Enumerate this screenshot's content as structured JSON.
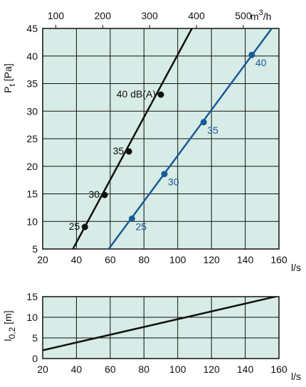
{
  "chart_data": [
    {
      "type": "line",
      "id": "pressure",
      "xlabel": "l/s",
      "ylabel_main": "P",
      "ylabel_sub": "t",
      "ylabel_unit": "[Pa]",
      "x_ticks": [
        20,
        40,
        60,
        80,
        100,
        120,
        140,
        160
      ],
      "xlim": [
        20,
        160
      ],
      "y_ticks": [
        5,
        10,
        15,
        20,
        25,
        30,
        35,
        40,
        45
      ],
      "ylim": [
        5,
        45
      ],
      "grid": true,
      "top_axis": {
        "label_base": "m",
        "label_sup": "3",
        "label_tail": "/h",
        "ticks": [
          100,
          200,
          300,
          400,
          500
        ],
        "ls_per_unit": 0.277778
      },
      "series": [
        {
          "color": "#111111",
          "x": [
            37.9,
            108.4
          ],
          "y": [
            5,
            45
          ],
          "points": [
            {
              "x": 45.0,
              "y": 9.0,
              "label": "25"
            },
            {
              "x": 56.7,
              "y": 14.8,
              "label": "30"
            },
            {
              "x": 71.1,
              "y": 22.7,
              "label": "35"
            },
            {
              "x": 90.0,
              "y": 33.0,
              "label": "40 dB(A)"
            }
          ]
        },
        {
          "color": "#1a5a96",
          "x": [
            59.1,
            155.7
          ],
          "y": [
            5,
            45
          ],
          "points": [
            {
              "x": 72.9,
              "y": 10.5,
              "label": "25"
            },
            {
              "x": 92.1,
              "y": 18.6,
              "label": "30"
            },
            {
              "x": 115.4,
              "y": 28.0,
              "label": "35"
            },
            {
              "x": 143.9,
              "y": 40.2,
              "label": "40"
            }
          ]
        }
      ]
    },
    {
      "type": "line",
      "id": "throw",
      "xlabel": "l/s",
      "ylabel_main": "l",
      "ylabel_sub": "0,2",
      "ylabel_unit": "[m]",
      "x_ticks": [
        20,
        40,
        60,
        80,
        100,
        120,
        140,
        160
      ],
      "xlim": [
        20,
        160
      ],
      "y_ticks": [
        0,
        5,
        10,
        15
      ],
      "ylim": [
        0,
        15
      ],
      "grid": true,
      "series": [
        {
          "color": "#111111",
          "x": [
            20,
            160
          ],
          "y": [
            2.0,
            15.2
          ]
        }
      ]
    }
  ],
  "colors": {
    "plot_background": "#d7ece7",
    "grid": "#111111",
    "series_black": "#111111",
    "series_blue": "#1a5a96"
  }
}
